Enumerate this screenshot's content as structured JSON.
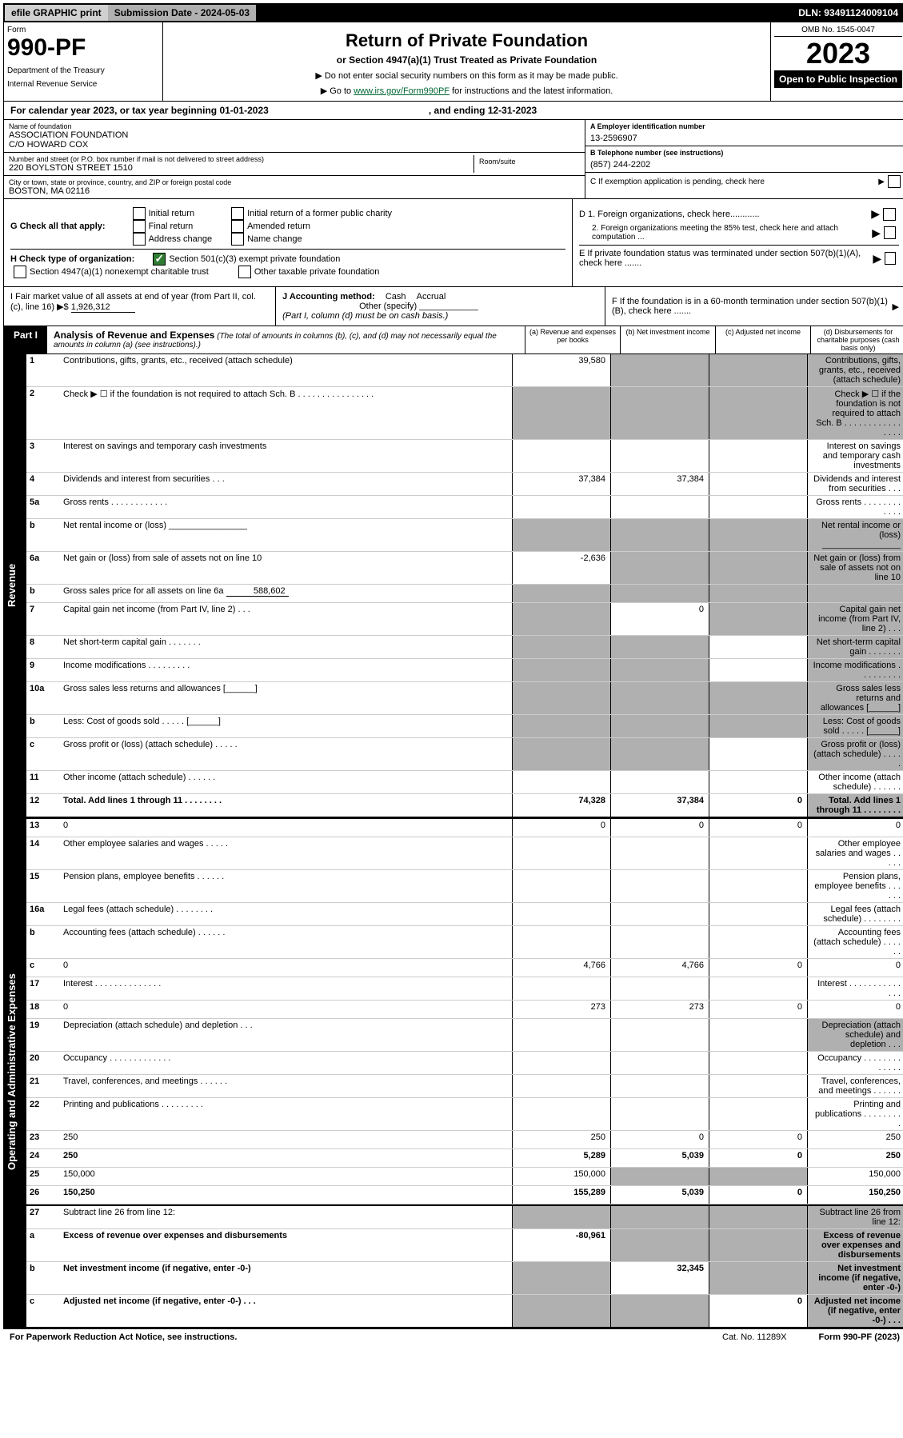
{
  "top": {
    "efile": "efile GRAPHIC print",
    "submission_label": "Submission Date - 2024-05-03",
    "dln": "DLN: 93491124009104"
  },
  "header": {
    "form_label": "Form",
    "form_no": "990-PF",
    "dept": "Department of the Treasury",
    "irs": "Internal Revenue Service",
    "title": "Return of Private Foundation",
    "subtitle": "or Section 4947(a)(1) Trust Treated as Private Foundation",
    "instr1": "▶ Do not enter social security numbers on this form as it may be made public.",
    "instr2_pre": "▶ Go to ",
    "instr2_link": "www.irs.gov/Form990PF",
    "instr2_post": " for instructions and the latest information.",
    "omb": "OMB No. 1545-0047",
    "year": "2023",
    "open": "Open to Public Inspection"
  },
  "cal_year": {
    "text": "For calendar year 2023, or tax year beginning 01-01-2023",
    "ending": ", and ending 12-31-2023"
  },
  "entity": {
    "name_label": "Name of foundation",
    "name1": "ASSOCIATION FOUNDATION",
    "name2": "C/O HOWARD COX",
    "addr_label": "Number and street (or P.O. box number if mail is not delivered to street address)",
    "addr": "220 BOYLSTON STREET 1510",
    "room_label": "Room/suite",
    "city_label": "City or town, state or province, country, and ZIP or foreign postal code",
    "city": "BOSTON, MA  02116",
    "ein_label": "A Employer identification number",
    "ein": "13-2596907",
    "phone_label": "B Telephone number (see instructions)",
    "phone": "(857) 244-2202",
    "c_label": "C If exemption application is pending, check here"
  },
  "checks": {
    "g": "G Check all that apply:",
    "g_opts": [
      "Initial return",
      "Final return",
      "Address change",
      "Initial return of a former public charity",
      "Amended return",
      "Name change"
    ],
    "h": "H Check type of organization:",
    "h1": "Section 501(c)(3) exempt private foundation",
    "h2": "Section 4947(a)(1) nonexempt charitable trust",
    "h3": "Other taxable private foundation",
    "d1": "D 1. Foreign organizations, check here............",
    "d2": "2. Foreign organizations meeting the 85% test, check here and attach computation ...",
    "e": "E  If private foundation status was terminated under section 507(b)(1)(A), check here .......",
    "i": "I Fair market value of all assets at end of year (from Part II, col. (c), line 16) ▶$ ",
    "i_val": "1,926,312",
    "j": "J Accounting method:",
    "j_cash": "Cash",
    "j_accrual": "Accrual",
    "j_other": "Other (specify)",
    "j_note": "(Part I, column (d) must be on cash basis.)",
    "f": "F  If the foundation is in a 60-month termination under section 507(b)(1)(B), check here ......."
  },
  "part1": {
    "label": "Part I",
    "title": "Analysis of Revenue and Expenses",
    "note": "(The total of amounts in columns (b), (c), and (d) may not necessarily equal the amounts in column (a) (see instructions).)",
    "col_a": "(a)  Revenue and expenses per books",
    "col_b": "(b)  Net investment income",
    "col_c": "(c)  Adjusted net income",
    "col_d": "(d)  Disbursements for charitable purposes (cash basis only)"
  },
  "side": {
    "revenue": "Revenue",
    "expenses": "Operating and Administrative Expenses"
  },
  "rows": [
    {
      "n": "1",
      "d": "Contributions, gifts, grants, etc., received (attach schedule)",
      "a": "39,580",
      "b_grey": true,
      "c_grey": true,
      "d_grey": true
    },
    {
      "n": "2",
      "d": "Check ▶ ☐ if the foundation is not required to attach Sch. B  .  .  .  .  .  .  .  .  .  .  .  .  .  .  .  .",
      "a_grey": true,
      "b_grey": true,
      "c_grey": true,
      "d_grey": true
    },
    {
      "n": "3",
      "d": "Interest on savings and temporary cash investments"
    },
    {
      "n": "4",
      "d": "Dividends and interest from securities    .    .    .",
      "a": "37,384",
      "b": "37,384"
    },
    {
      "n": "5a",
      "d": "Gross rents   .   .   .   .   .   .   .   .   .   .   .   ."
    },
    {
      "n": "b",
      "d": "Net rental income or (loss)  ________________",
      "a_grey": true,
      "b_grey": true,
      "c_grey": true,
      "d_grey": true
    },
    {
      "n": "6a",
      "d": "Net gain or (loss) from sale of assets not on line 10",
      "a": "-2,636",
      "b_grey": true,
      "c_grey": true,
      "d_grey": true
    },
    {
      "n": "b",
      "d_html": "Gross sales price for all assets on line 6a",
      "inline": "588,602",
      "a_grey": true,
      "b_grey": true,
      "c_grey": true,
      "d_grey": true
    },
    {
      "n": "7",
      "d": "Capital gain net income (from Part IV, line 2)   .   .   .",
      "a_grey": true,
      "b": "0",
      "c_grey": true,
      "d_grey": true
    },
    {
      "n": "8",
      "d": "Net short-term capital gain   .   .   .   .   .   .   .",
      "a_grey": true,
      "b_grey": true,
      "d_grey": true
    },
    {
      "n": "9",
      "d": "Income modifications  .   .   .   .   .   .   .   .   .",
      "a_grey": true,
      "b_grey": true,
      "d_grey": true
    },
    {
      "n": "10a",
      "d": "Gross sales less returns and allowances  [______]",
      "a_grey": true,
      "b_grey": true,
      "c_grey": true,
      "d_grey": true
    },
    {
      "n": "b",
      "d": "Less: Cost of goods sold    .   .   .   .   .  [______]",
      "a_grey": true,
      "b_grey": true,
      "c_grey": true,
      "d_grey": true
    },
    {
      "n": "c",
      "d": "Gross profit or (loss) (attach schedule)    .   .   .   .   .",
      "a_grey": true,
      "b_grey": true,
      "d_grey": true
    },
    {
      "n": "11",
      "d": "Other income (attach schedule)    .   .   .   .   .   ."
    },
    {
      "n": "12",
      "d": "Total. Add lines 1 through 11   .   .   .   .   .   .   .   .",
      "bold": true,
      "a": "74,328",
      "b": "37,384",
      "c": "0",
      "d_grey": true
    },
    {
      "n": "13",
      "d": "0",
      "a": "0",
      "b": "0",
      "c": "0",
      "sec": true
    },
    {
      "n": "14",
      "d": "Other employee salaries and wages   .   .   .   .   ."
    },
    {
      "n": "15",
      "d": "Pension plans, employee benefits  .   .   .   .   .   ."
    },
    {
      "n": "16a",
      "d": "Legal fees (attach schedule)  .   .   .   .   .   .   .   ."
    },
    {
      "n": "b",
      "d": "Accounting fees (attach schedule)  .  .   .   .   .   ."
    },
    {
      "n": "c",
      "d": "0",
      "a": "4,766",
      "b": "4,766",
      "c": "0"
    },
    {
      "n": "17",
      "d": "Interest  .   .   .   .   .   .   .   .   .   .   .   .   .   ."
    },
    {
      "n": "18",
      "d": "0",
      "a": "273",
      "b": "273",
      "c": "0"
    },
    {
      "n": "19",
      "d": "Depreciation (attach schedule) and depletion    .    .    .",
      "d_grey": true
    },
    {
      "n": "20",
      "d": "Occupancy  .   .   .   .   .   .   .   .   .   .   .   .   ."
    },
    {
      "n": "21",
      "d": "Travel, conferences, and meetings  .   .   .   .   .   ."
    },
    {
      "n": "22",
      "d": "Printing and publications  .   .   .   .   .   .   .   .   ."
    },
    {
      "n": "23",
      "d": "250",
      "a": "250",
      "b": "0",
      "c": "0"
    },
    {
      "n": "24",
      "d": "250",
      "bold": true,
      "a": "5,289",
      "b": "5,039",
      "c": "0"
    },
    {
      "n": "25",
      "d": "150,000",
      "a": "150,000",
      "b_grey": true,
      "c_grey": true
    },
    {
      "n": "26",
      "d": "150,250",
      "bold": true,
      "a": "155,289",
      "b": "5,039",
      "c": "0"
    },
    {
      "n": "27",
      "d": "Subtract line 26 from line 12:",
      "a_grey": true,
      "b_grey": true,
      "c_grey": true,
      "d_grey": true,
      "sec": true
    },
    {
      "n": "a",
      "d": "Excess of revenue over expenses and disbursements",
      "bold": true,
      "a": "-80,961",
      "b_grey": true,
      "c_grey": true,
      "d_grey": true
    },
    {
      "n": "b",
      "d": "Net investment income (if negative, enter -0-)",
      "bold": true,
      "a_grey": true,
      "b": "32,345",
      "c_grey": true,
      "d_grey": true
    },
    {
      "n": "c",
      "d": "Adjusted net income (if negative, enter -0-)    .    .    .",
      "bold": true,
      "a_grey": true,
      "b_grey": true,
      "c": "0",
      "d_grey": true
    }
  ],
  "footer": {
    "paperwork": "For Paperwork Reduction Act Notice, see instructions.",
    "cat": "Cat. No. 11289X",
    "form": "Form 990-PF (2023)"
  }
}
